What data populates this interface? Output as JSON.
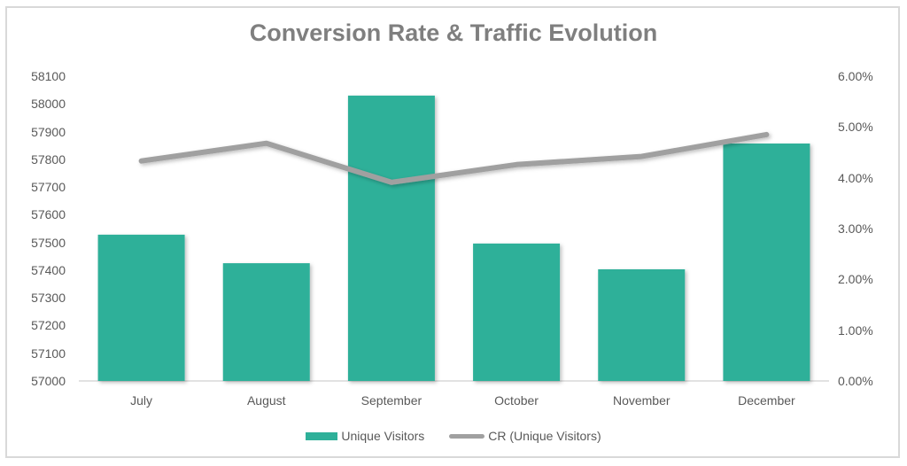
{
  "title": "Conversion Rate & Traffic Evolution",
  "colors": {
    "bar": "#2eb099",
    "line": "#a0a0a0",
    "axis_text": "#595959",
    "title": "#7f7f7f",
    "border": "#d9d9d9"
  },
  "left_axis": {
    "ticks": [
      "58100",
      "58000",
      "57900",
      "57800",
      "57700",
      "57600",
      "57500",
      "57400",
      "57300",
      "57200",
      "57100",
      "57000"
    ]
  },
  "right_axis": {
    "ticks": [
      "6.00%",
      "5.00%",
      "4.00%",
      "3.00%",
      "2.00%",
      "1.00%",
      "0.00%"
    ]
  },
  "x_axis": {
    "ticks": [
      "July",
      "August",
      "September",
      "October",
      "November",
      "December"
    ]
  },
  "legend": {
    "bar_label": "Unique Visitors",
    "line_label": "CR (Unique Visitors)"
  },
  "chart_data": {
    "type": "bar",
    "title": "Conversion Rate & Traffic Evolution",
    "categories": [
      "July",
      "August",
      "September",
      "October",
      "November",
      "December"
    ],
    "series": [
      {
        "name": "Unique Visitors",
        "type": "bar",
        "axis": "left",
        "values": [
          57528,
          57425,
          58030,
          57496,
          57403,
          57857
        ]
      },
      {
        "name": "CR (Unique Visitors)",
        "type": "line",
        "axis": "right",
        "values": [
          0.0433,
          0.0468,
          0.0391,
          0.0426,
          0.0442,
          0.0485
        ]
      }
    ],
    "xlabel": "",
    "ylabel": "",
    "ylim": [
      57000,
      58100
    ],
    "y2lim": [
      0,
      0.06
    ],
    "y2_format": "percent",
    "grid": false,
    "legend_position": "bottom"
  }
}
